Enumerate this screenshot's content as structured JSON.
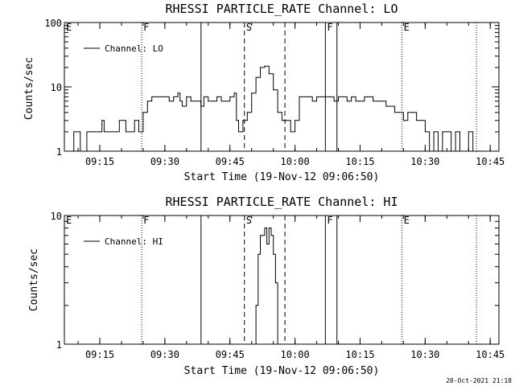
{
  "chart_data": [
    {
      "type": "line",
      "title": "RHESSI PARTICLE_RATE Channel: LO",
      "xlabel": "Start Time (19-Nov-12 09:06:50)",
      "ylabel": "Counts/sec",
      "y_scale": "log",
      "ylim": [
        1,
        100
      ],
      "y_ticks": [
        "1",
        "10",
        "100"
      ],
      "xlim": [
        "09:06:50",
        "10:47:00"
      ],
      "x_ticks": [
        "09:15",
        "09:30",
        "09:45",
        "10:00",
        "10:15",
        "10:30",
        "10:45"
      ],
      "legend": {
        "position": "top-left",
        "entries": [
          "Channel: LO"
        ]
      },
      "markers": [
        {
          "label": "E",
          "time": "09:06:50",
          "style": "none"
        },
        {
          "label": "F",
          "time": "09:24:40",
          "style": "dotted"
        },
        {
          "label": "",
          "time": "09:38:20",
          "style": "solid"
        },
        {
          "label": "S",
          "time": "09:48:20",
          "style": "dashed"
        },
        {
          "label": "",
          "time": "09:57:40",
          "style": "dashed"
        },
        {
          "label": "F",
          "time": "10:07:00",
          "style": "solid"
        },
        {
          "label": "",
          "time": "10:09:40",
          "style": "solid"
        },
        {
          "label": "E",
          "time": "10:24:40",
          "style": "dotted"
        },
        {
          "label": "",
          "time": "10:41:50",
          "style": "dotted"
        }
      ],
      "series": [
        {
          "name": "Channel: LO",
          "x": [
            "09:07:30",
            "09:09:00",
            "09:10:30",
            "09:12:00",
            "09:13:00",
            "09:13:30",
            "09:15:00",
            "09:15:30",
            "09:16:00",
            "09:18:00",
            "09:19:00",
            "09:19:30",
            "09:21:00",
            "09:21:30",
            "09:23:00",
            "09:24:00",
            "09:24:40",
            "09:25:00",
            "09:26:00",
            "09:27:00",
            "09:28:00",
            "09:29:30",
            "09:30:00",
            "09:31:00",
            "09:32:00",
            "09:33:00",
            "09:33:30",
            "09:34:00",
            "09:35:00",
            "09:36:00",
            "09:37:00",
            "09:38:00",
            "09:38:20",
            "09:39:00",
            "09:40:00",
            "09:41:00",
            "09:42:00",
            "09:43:00",
            "09:44:00",
            "09:45:00",
            "09:46:00",
            "09:46:30",
            "09:47:00",
            "09:48:00",
            "09:49:00",
            "09:50:00",
            "09:51:00",
            "09:52:00",
            "09:53:00",
            "09:54:00",
            "09:55:00",
            "09:56:00",
            "09:57:00",
            "09:58:00",
            "09:59:00",
            "10:00:00",
            "10:01:00",
            "10:02:00",
            "10:03:00",
            "10:04:00",
            "10:05:00",
            "10:06:00",
            "10:07:00",
            "10:08:00",
            "10:09:00",
            "10:10:00",
            "10:11:00",
            "10:12:00",
            "10:13:00",
            "10:14:00",
            "10:15:00",
            "10:16:00",
            "10:17:00",
            "10:18:00",
            "10:19:00",
            "10:20:00",
            "10:21:00",
            "10:22:00",
            "10:23:00",
            "10:24:00",
            "10:25:00",
            "10:26:00",
            "10:27:00",
            "10:28:00",
            "10:29:00",
            "10:30:00",
            "10:31:00",
            "10:32:00",
            "10:33:00",
            "10:34:00",
            "10:35:00",
            "10:36:00",
            "10:37:00",
            "10:38:00",
            "10:39:00",
            "10:40:00",
            "10:41:00"
          ],
          "y": [
            1,
            2,
            1,
            2,
            2,
            2,
            2,
            3,
            2,
            2,
            2,
            3,
            2,
            2,
            3,
            2,
            2,
            4,
            6,
            7,
            7,
            7,
            7,
            6,
            7,
            8,
            6,
            5,
            7,
            6,
            6,
            6,
            5,
            7,
            6,
            6,
            7,
            6,
            6,
            7,
            8,
            3,
            2,
            3,
            4,
            8,
            14,
            20,
            21,
            16,
            9,
            4,
            3,
            3,
            2,
            3,
            7,
            7,
            7,
            6,
            7,
            7,
            7,
            7,
            6,
            7,
            7,
            6,
            7,
            6,
            6,
            7,
            7,
            6,
            6,
            6,
            5,
            5,
            4,
            4,
            3,
            4,
            4,
            3,
            3,
            2,
            1,
            2,
            1,
            2,
            2,
            1,
            2,
            1,
            1,
            2,
            1
          ]
        }
      ]
    },
    {
      "type": "line",
      "title": "RHESSI PARTICLE_RATE Channel: HI",
      "xlabel": "Start Time (19-Nov-12 09:06:50)",
      "ylabel": "Counts/sec",
      "y_scale": "log",
      "ylim": [
        1,
        10
      ],
      "y_ticks": [
        "1",
        "10"
      ],
      "xlim": [
        "09:06:50",
        "10:47:00"
      ],
      "x_ticks": [
        "09:15",
        "09:30",
        "09:45",
        "10:00",
        "10:15",
        "10:30",
        "10:45"
      ],
      "legend": {
        "position": "top-left",
        "entries": [
          "Channel: HI"
        ]
      },
      "markers": [
        {
          "label": "E",
          "time": "09:06:50",
          "style": "none"
        },
        {
          "label": "F",
          "time": "09:24:40",
          "style": "dotted"
        },
        {
          "label": "",
          "time": "09:38:20",
          "style": "solid"
        },
        {
          "label": "S",
          "time": "09:48:20",
          "style": "dashed"
        },
        {
          "label": "",
          "time": "09:57:40",
          "style": "dashed"
        },
        {
          "label": "F",
          "time": "10:07:00",
          "style": "solid"
        },
        {
          "label": "",
          "time": "10:09:40",
          "style": "solid"
        },
        {
          "label": "E",
          "time": "10:24:40",
          "style": "dotted"
        },
        {
          "label": "",
          "time": "10:41:50",
          "style": "dotted"
        }
      ],
      "series": [
        {
          "name": "Channel: HI",
          "x": [
            "09:50:30",
            "09:51:00",
            "09:51:30",
            "09:52:00",
            "09:52:30",
            "09:53:00",
            "09:53:30",
            "09:54:00",
            "09:54:30",
            "09:55:00",
            "09:55:30",
            "09:56:00"
          ],
          "y": [
            1,
            2,
            5,
            7,
            7,
            8,
            6,
            8,
            7,
            5,
            3,
            1
          ]
        }
      ]
    }
  ],
  "footer": {
    "timestamp": "20-Oct-2021 21:18"
  }
}
